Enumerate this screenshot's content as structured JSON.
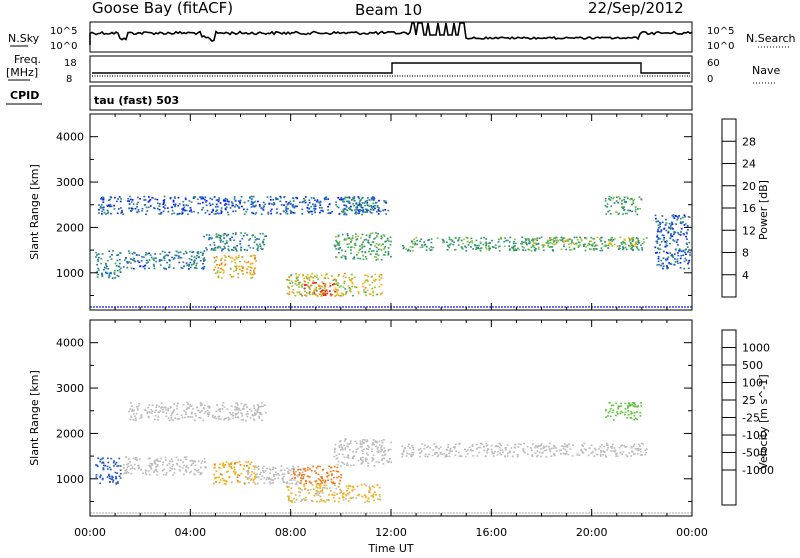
{
  "header": {
    "station": "Goose Bay (fitACF)",
    "beam": "Beam 10",
    "date": "22/Sep/2012"
  },
  "noise_panel": {
    "left_label": "N.Sky",
    "right_label": "N.Search",
    "left_ticks": [
      "10^5",
      "10^0"
    ],
    "right_ticks": [
      "10^5",
      "10^0"
    ]
  },
  "freq_panel": {
    "left_label": "Freq.",
    "left_unit": "[MHz]",
    "left_ticks": [
      "18",
      "8"
    ],
    "right_label": "Nave",
    "right_ticks": [
      "60",
      "0"
    ],
    "cpid_label": "CPID",
    "cpid_text": "tau (fast) 503"
  },
  "colors": {
    "power_scale": [
      "#0a18ff",
      "#1f63c9",
      "#2e8a7a",
      "#3aa860",
      "#8cc63e",
      "#f2b21a",
      "#f47a17",
      "#e6261b"
    ],
    "velocity_scale": [
      "#1522c8",
      "#2a5cc4",
      "#2f7a55",
      "#62c23c",
      "#bdbdbd",
      "#bdbdbd",
      "#f2b21a",
      "#f07a18",
      "#e44a1a",
      "#e01b1b"
    ],
    "gray_scatter": "#bdbdbd"
  },
  "chart_data": [
    {
      "type": "heatmap",
      "panel": "power",
      "ylabel": "Slant Range [km]",
      "xlabel": "Time UT",
      "x_ticks": [
        "00:00",
        "04:00",
        "08:00",
        "12:00",
        "16:00",
        "20:00",
        "00:00"
      ],
      "y_ticks": [
        1000,
        2000,
        3000,
        4000
      ],
      "ylim": [
        180,
        4500
      ],
      "xlim_hours": [
        0,
        24
      ],
      "colorbar_label": "Power [dB]",
      "colorbar_ticks": [
        4,
        8,
        12,
        16,
        20,
        24,
        28
      ],
      "colorbar_range": [
        0,
        32
      ],
      "echo_regions": [
        {
          "t0": 0.3,
          "t1": 11.9,
          "r0": 2300,
          "r1": 2700,
          "value": 6
        },
        {
          "t0": 0.2,
          "t1": 1.2,
          "r0": 900,
          "r1": 1500,
          "value": 10
        },
        {
          "t0": 1.3,
          "t1": 4.6,
          "r0": 1100,
          "r1": 1500,
          "value": 8
        },
        {
          "t0": 4.9,
          "t1": 6.6,
          "r0": 900,
          "r1": 1400,
          "value": 22
        },
        {
          "t0": 4.5,
          "t1": 7.0,
          "r0": 1500,
          "r1": 1900,
          "value": 10
        },
        {
          "t0": 7.8,
          "t1": 11.6,
          "r0": 500,
          "r1": 1000,
          "value": 20
        },
        {
          "t0": 8.5,
          "t1": 9.8,
          "r0": 500,
          "r1": 800,
          "value": 28
        },
        {
          "t0": 9.7,
          "t1": 12.0,
          "r0": 1300,
          "r1": 1900,
          "value": 14
        },
        {
          "t0": 10.0,
          "t1": 11.4,
          "r0": 2300,
          "r1": 2700,
          "value": 11
        },
        {
          "t0": 12.4,
          "t1": 22.2,
          "r0": 1500,
          "r1": 1800,
          "value": 13
        },
        {
          "t0": 17.5,
          "t1": 21.8,
          "r0": 1600,
          "r1": 1800,
          "value": 18
        },
        {
          "t0": 20.5,
          "t1": 22.0,
          "r0": 2300,
          "r1": 2700,
          "value": 12
        },
        {
          "t0": 22.5,
          "t1": 23.9,
          "r0": 1100,
          "r1": 2300,
          "value": 7
        }
      ]
    },
    {
      "type": "heatmap",
      "panel": "velocity",
      "ylabel": "Slant Range [km]",
      "xlabel": "Time UT",
      "x_ticks": [
        "00:00",
        "04:00",
        "08:00",
        "12:00",
        "16:00",
        "20:00",
        "00:00"
      ],
      "y_ticks": [
        1000,
        2000,
        3000,
        4000
      ],
      "ylim": [
        180,
        4500
      ],
      "xlim_hours": [
        0,
        24
      ],
      "colorbar_label": "Velocity [m s^-1]",
      "colorbar_ticks": [
        "1000",
        "500",
        "100",
        "25",
        "-25",
        "-100",
        "-500",
        "-1000"
      ],
      "echo_regions": [
        {
          "t0": 1.5,
          "t1": 7.0,
          "r0": 2300,
          "r1": 2700,
          "value": 0
        },
        {
          "t0": 0.2,
          "t1": 1.2,
          "r0": 900,
          "r1": 1500,
          "value": 600
        },
        {
          "t0": 1.3,
          "t1": 4.6,
          "r0": 1100,
          "r1": 1500,
          "value": 0
        },
        {
          "t0": 4.9,
          "t1": 6.6,
          "r0": 900,
          "r1": 1400,
          "value": -150
        },
        {
          "t0": 6.2,
          "t1": 8.5,
          "r0": 900,
          "r1": 1300,
          "value": 0
        },
        {
          "t0": 8.0,
          "t1": 10.0,
          "r0": 900,
          "r1": 1300,
          "value": -300
        },
        {
          "t0": 7.8,
          "t1": 11.6,
          "r0": 500,
          "r1": 900,
          "value": -80
        },
        {
          "t0": 9.7,
          "t1": 12.0,
          "r0": 1300,
          "r1": 1900,
          "value": 0
        },
        {
          "t0": 12.4,
          "t1": 22.2,
          "r0": 1500,
          "r1": 1800,
          "value": 0
        },
        {
          "t0": 20.5,
          "t1": 22.0,
          "r0": 2300,
          "r1": 2700,
          "value": 150
        }
      ]
    }
  ]
}
